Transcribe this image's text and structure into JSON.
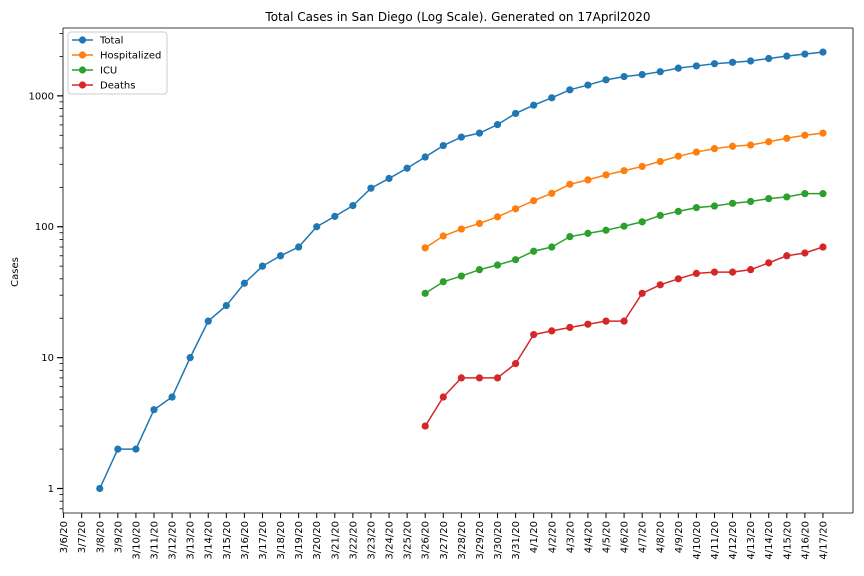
{
  "chart_data": {
    "type": "line",
    "title": "Total Cases in San Diego (Log Scale). Generated on 17April2020",
    "xlabel": "",
    "ylabel": "Cases",
    "yscale": "log",
    "ylim": [
      0.65,
      3300
    ],
    "ytick_labels": [
      "1",
      "10",
      "100",
      "1000"
    ],
    "grid": false,
    "legend_position": "top-left",
    "categories": [
      "3/6/20",
      "3/7/20",
      "3/8/20",
      "3/9/20",
      "3/10/20",
      "3/11/20",
      "3/12/20",
      "3/13/20",
      "3/14/20",
      "3/15/20",
      "3/16/20",
      "3/17/20",
      "3/18/20",
      "3/19/20",
      "3/20/20",
      "3/21/20",
      "3/22/20",
      "3/23/20",
      "3/24/20",
      "3/25/20",
      "3/26/20",
      "3/27/20",
      "3/28/20",
      "3/29/20",
      "3/30/20",
      "3/31/20",
      "4/1/20",
      "4/2/20",
      "4/3/20",
      "4/4/20",
      "4/5/20",
      "4/6/20",
      "4/7/20",
      "4/8/20",
      "4/9/20",
      "4/10/20",
      "4/11/20",
      "4/12/20",
      "4/13/20",
      "4/14/20",
      "4/15/20",
      "4/16/20",
      "4/17/20"
    ],
    "series": [
      {
        "name": "Total",
        "color": "#1f77b4",
        "values": [
          null,
          null,
          1,
          2,
          2,
          4,
          5,
          10,
          19,
          25,
          37,
          50,
          60,
          70,
          100,
          120,
          145,
          197,
          234,
          280,
          341,
          417,
          484,
          519,
          603,
          734,
          849,
          966,
          1112,
          1209,
          1326,
          1404,
          1454,
          1530,
          1628,
          1693,
          1761,
          1804,
          1847,
          1930,
          2012,
          2087,
          2158
        ]
      },
      {
        "name": "Hospitalized",
        "color": "#ff7f0e",
        "values": [
          null,
          null,
          null,
          null,
          null,
          null,
          null,
          null,
          null,
          null,
          null,
          null,
          null,
          null,
          null,
          null,
          null,
          null,
          null,
          null,
          69,
          85,
          96,
          106,
          119,
          137,
          158,
          180,
          211,
          228,
          249,
          268,
          289,
          315,
          346,
          372,
          395,
          412,
          421,
          446,
          474,
          500,
          519
        ]
      },
      {
        "name": "ICU",
        "color": "#2ca02c",
        "values": [
          null,
          null,
          null,
          null,
          null,
          null,
          null,
          null,
          null,
          null,
          null,
          null,
          null,
          null,
          null,
          null,
          null,
          null,
          null,
          null,
          31,
          38,
          42,
          47,
          51,
          56,
          65,
          70,
          84,
          89,
          94,
          101,
          109,
          122,
          131,
          140,
          144,
          151,
          156,
          164,
          169,
          179,
          179
        ]
      },
      {
        "name": "Deaths",
        "color": "#d62728",
        "values": [
          null,
          null,
          null,
          null,
          null,
          null,
          null,
          null,
          null,
          null,
          null,
          null,
          null,
          null,
          null,
          null,
          null,
          null,
          null,
          null,
          3,
          5,
          7,
          7,
          7,
          9,
          15,
          16,
          17,
          18,
          19,
          19,
          31,
          36,
          40,
          44,
          45,
          45,
          47,
          53,
          60,
          63,
          70
        ]
      }
    ]
  }
}
